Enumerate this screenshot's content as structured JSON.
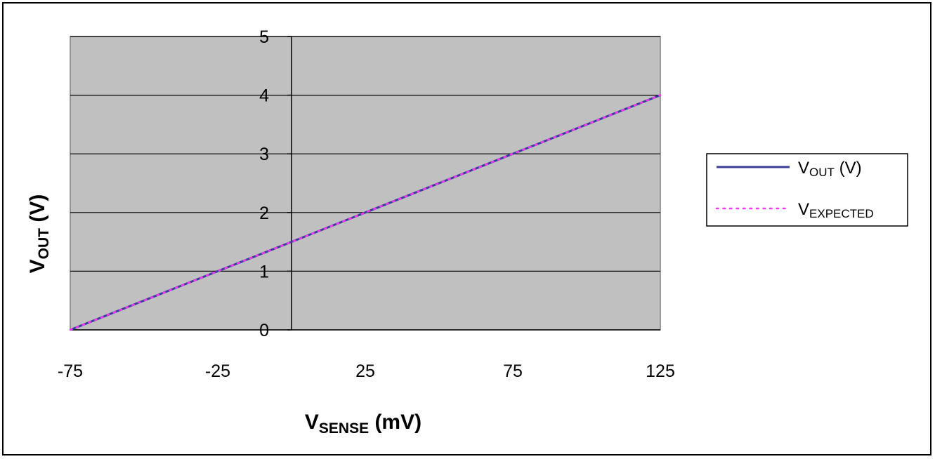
{
  "chart_data": {
    "type": "line",
    "title": "",
    "xlabel": {
      "main": "V",
      "sub": "SENSE",
      "suffix": " (mV)"
    },
    "ylabel": {
      "main": "V",
      "sub": "OUT",
      "suffix": " (V)"
    },
    "xlim": [
      -75,
      125
    ],
    "ylim": [
      0,
      5
    ],
    "x_ticks": [
      -75,
      -25,
      25,
      75,
      125
    ],
    "y_ticks": [
      0,
      1,
      2,
      3,
      4,
      5
    ],
    "grid": {
      "horizontal": true,
      "vertical": false
    },
    "plot_background": "#c0c0c0",
    "legend_position": "right",
    "series": [
      {
        "name": {
          "main": "V",
          "sub": "OUT",
          "suffix": " (V)"
        },
        "style": "solid",
        "color": "#3b3b98",
        "x": [
          -75,
          -25,
          0,
          25,
          75,
          125
        ],
        "y": [
          0,
          1,
          1.5,
          2,
          3,
          4
        ]
      },
      {
        "name": {
          "main": "V",
          "sub": "EXPECTED",
          "suffix": ""
        },
        "style": "dotted",
        "color": "#ff33ff",
        "x": [
          -75,
          -25,
          0,
          25,
          75,
          125
        ],
        "y": [
          0,
          1,
          1.5,
          2,
          3,
          4
        ]
      }
    ]
  }
}
